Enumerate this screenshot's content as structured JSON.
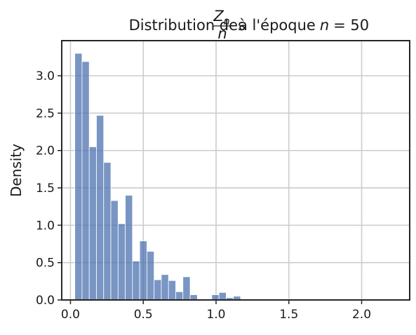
{
  "chart_data": {
    "type": "histogram",
    "title": {
      "prefix": "Distribution des",
      "numerator": "Z",
      "numerator_sub": "n",
      "denominator": "n",
      "suffix": "à l'époque",
      "variable": "n",
      "equation": "= 50"
    },
    "ylabel": "Density",
    "bins": [
      0.03,
      0.0795,
      0.129,
      0.1785,
      0.228,
      0.2775,
      0.327,
      0.3765,
      0.426,
      0.4755,
      0.525,
      0.5745,
      0.624,
      0.6735,
      0.723,
      0.7725,
      0.822,
      0.8715,
      0.921,
      0.9705,
      1.02,
      1.0695,
      1.119,
      1.1685,
      1.218,
      1.2675,
      1.317,
      1.3665,
      1.416,
      1.4655,
      1.515,
      1.5645,
      1.614,
      1.6635,
      1.713,
      1.7625,
      1.812,
      1.8615,
      1.911,
      1.9605,
      2.01,
      2.0595,
      2.109,
      2.1585,
      2.208
    ],
    "values": [
      3.3,
      3.19,
      2.05,
      2.47,
      1.84,
      1.33,
      1.02,
      1.4,
      0.52,
      0.79,
      0.65,
      0.27,
      0.34,
      0.26,
      0.11,
      0.31,
      0.07,
      0,
      0,
      0.07,
      0.1,
      0.03,
      0.05,
      0,
      0,
      0,
      0.01,
      0,
      0,
      0.01,
      0.01,
      0,
      0,
      0.01,
      0,
      0,
      0,
      0,
      0,
      0,
      0,
      0,
      0,
      0.01
    ],
    "color": "#4c72b0",
    "xlim": [
      -0.06,
      2.33
    ],
    "ylim": [
      0,
      3.47
    ],
    "xticks": [
      {
        "value": 0,
        "label": "0.0"
      },
      0.5,
      {
        "value": 1,
        "label": "1.0"
      },
      1.5,
      {
        "value": 2,
        "label": "2.0"
      }
    ],
    "yticks": [
      {
        "value": 0,
        "label": "0.0"
      },
      0.5,
      {
        "value": 1,
        "label": "1.0"
      },
      1.5,
      {
        "value": 2,
        "label": "2.0"
      },
      2.5,
      {
        "value": 3,
        "label": "3.0"
      }
    ],
    "grid": true
  }
}
